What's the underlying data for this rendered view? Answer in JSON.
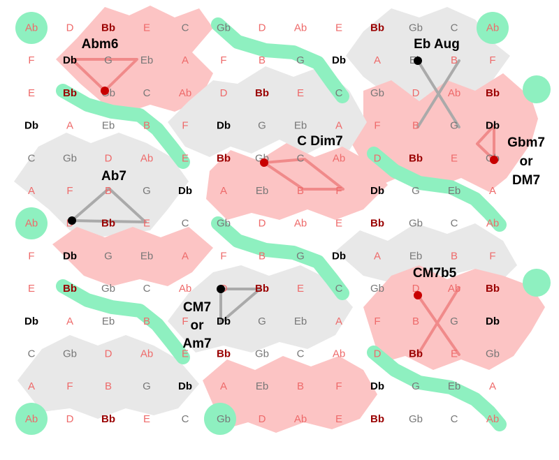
{
  "colors": {
    "background": "#ffffff",
    "gray_region": "#e8e8e8",
    "pink_region": "#fcc4c4",
    "green_band": "#8ef0c0",
    "note_dark_red": "#9a0000",
    "note_light_red": "#ee6a6a",
    "note_black": "#000000",
    "note_gray": "#777777",
    "pink_line": "#f08a8a",
    "gray_line": "#aaaaaa",
    "dot_red": "#c80000",
    "dot_black": "#000000"
  },
  "grid": {
    "rows": [
      [
        "Ab",
        "D",
        "Bb",
        "E",
        "C",
        "Gb",
        "D",
        "Ab",
        "E",
        "Bb",
        "Gb",
        "C",
        "Ab"
      ],
      [
        "F",
        "Db",
        "G",
        "Eb",
        "A",
        "F",
        "B",
        "G",
        "Db",
        "A",
        "Eb",
        "B",
        "F"
      ],
      [
        "E",
        "Bb",
        "Gb",
        "C",
        "Ab",
        "D",
        "Bb",
        "E",
        "C",
        "Gb",
        "D",
        "Ab",
        "Bb"
      ],
      [
        "Db",
        "A",
        "Eb",
        "B",
        "F",
        "Db",
        "G",
        "Eb",
        "A",
        "F",
        "B",
        "G",
        "Db"
      ],
      [
        "C",
        "Gb",
        "D",
        "Ab",
        "E",
        "Bb",
        "Gb",
        "C",
        "Ab",
        "D",
        "Bb",
        "E",
        "Gb"
      ],
      [
        "A",
        "F",
        "B",
        "G",
        "Db",
        "A",
        "Eb",
        "B",
        "F",
        "Db",
        "G",
        "Eb",
        "A"
      ],
      [
        "Ab",
        "D",
        "Bb",
        "E",
        "C",
        "Gb",
        "D",
        "Ab",
        "E",
        "Bb",
        "Gb",
        "C",
        "Ab"
      ],
      [
        "F",
        "Db",
        "G",
        "Eb",
        "A",
        "F",
        "B",
        "G",
        "Db",
        "A",
        "Eb",
        "B",
        "F"
      ],
      [
        "E",
        "Bb",
        "Gb",
        "C",
        "Ab",
        "D",
        "Bb",
        "E",
        "C",
        "Gb",
        "D",
        "Ab",
        "Bb"
      ],
      [
        "Db",
        "A",
        "Eb",
        "B",
        "F",
        "Db",
        "G",
        "Eb",
        "A",
        "F",
        "B",
        "G",
        "Db"
      ],
      [
        "C",
        "Gb",
        "D",
        "Ab",
        "E",
        "Bb",
        "Gb",
        "C",
        "Ab",
        "D",
        "Bb",
        "E",
        "Gb"
      ],
      [
        "A",
        "F",
        "B",
        "G",
        "Db",
        "A",
        "Eb",
        "B",
        "F",
        "Db",
        "G",
        "Eb",
        "A"
      ],
      [
        "Ab",
        "D",
        "Bb",
        "E",
        "C",
        "Gb",
        "D",
        "Ab",
        "E",
        "Bb",
        "Gb",
        "C",
        "Ab"
      ]
    ],
    "note_colors": {
      "Bb": "note_dark_red",
      "D": "note_light_red",
      "Gb": "note_gray",
      "E": "note_light_red",
      "C": "note_gray",
      "Ab": "note_light_red",
      "Db": "note_black",
      "F": "note_light_red",
      "A": "note_light_red",
      "B": "note_light_red",
      "G": "note_gray",
      "Eb": "note_gray"
    }
  },
  "chords": [
    {
      "id": "abm6",
      "lines": [
        "Abm6"
      ]
    },
    {
      "id": "eb-aug",
      "lines": [
        "Eb Aug"
      ]
    },
    {
      "id": "c-dim7",
      "lines": [
        "C Dim7"
      ]
    },
    {
      "id": "gbm7-dm7",
      "lines": [
        "Gbm7",
        "or",
        "DM7"
      ]
    },
    {
      "id": "ab7",
      "lines": [
        "Ab7"
      ]
    },
    {
      "id": "cm7b5",
      "lines": [
        "CM7b5"
      ]
    },
    {
      "id": "cm7-am7",
      "lines": [
        "CM7",
        "or",
        "Am7"
      ]
    }
  ]
}
